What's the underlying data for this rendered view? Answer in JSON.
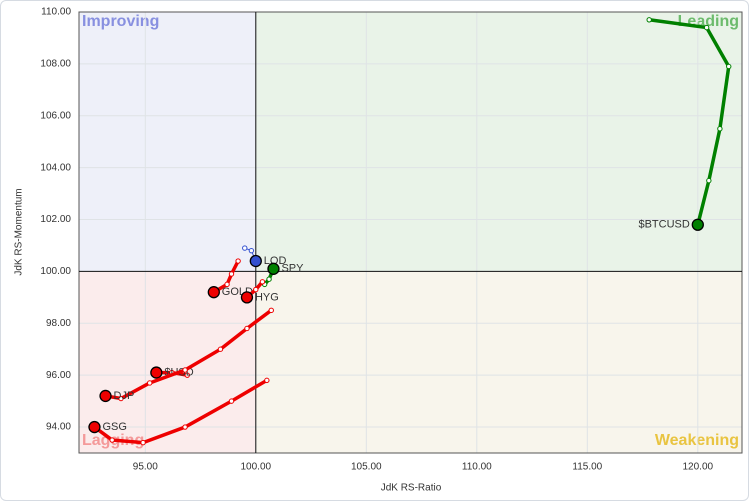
{
  "chart_data": {
    "type": "scatter",
    "x_label": "JdK RS-Ratio",
    "y_label": "JdK RS-Momentum",
    "xlim": [
      92,
      122
    ],
    "ylim": [
      93,
      110
    ],
    "xticks": [
      {
        "value": 95,
        "label": "95.00"
      },
      {
        "value": 100,
        "label": "100.00"
      },
      {
        "value": 105,
        "label": "105.00"
      },
      {
        "value": 110,
        "label": "110.00"
      },
      {
        "value": 115,
        "label": "115.00"
      },
      {
        "value": 120,
        "label": "120.00"
      }
    ],
    "yticks": [
      {
        "value": 94,
        "label": "94.00"
      },
      {
        "value": 96,
        "label": "96.00"
      },
      {
        "value": 98,
        "label": "98.00"
      },
      {
        "value": 100,
        "label": "100.00"
      },
      {
        "value": 102,
        "label": "102.00"
      },
      {
        "value": 104,
        "label": "104.00"
      },
      {
        "value": 106,
        "label": "106.00"
      },
      {
        "value": 108,
        "label": "108.00"
      },
      {
        "value": 110,
        "label": "110.00"
      }
    ],
    "grid": true,
    "center": [
      100,
      100
    ],
    "quadrants": [
      {
        "name": "Improving",
        "color": "#8890e0",
        "fill": "#eef0f9",
        "corner": "top-left"
      },
      {
        "name": "Leading",
        "color": "#6cbb6c",
        "fill": "#e9f3e8",
        "corner": "top-right"
      },
      {
        "name": "Weakening",
        "color": "#e9c441",
        "fill": "#f8f5ec",
        "corner": "bottom-right"
      },
      {
        "name": "Lagging",
        "color": "#f49a9a",
        "fill": "#fbecec",
        "corner": "bottom-left"
      }
    ],
    "series": [
      {
        "name": "$BTCUSD",
        "color": "#008000",
        "x": [
          117.8,
          120.4,
          121.4,
          121.0,
          120.5,
          120.0
        ],
        "values": [
          109.7,
          109.4,
          107.9,
          105.5,
          103.5,
          101.8
        ]
      },
      {
        "name": "LQD",
        "color": "#3350d0",
        "x": [
          99.5,
          99.8,
          100.0
        ],
        "values": [
          100.9,
          100.8,
          100.4
        ]
      },
      {
        "name": "SPY",
        "color": "#008000",
        "x": [
          100.4,
          100.6,
          100.8
        ],
        "values": [
          99.5,
          99.7,
          100.1
        ]
      },
      {
        "name": "GOLD",
        "color": "#ee0000",
        "x": [
          99.2,
          98.9,
          98.7,
          98.1
        ],
        "values": [
          100.4,
          99.9,
          99.5,
          99.2
        ]
      },
      {
        "name": "HYG",
        "color": "#ee0000",
        "x": [
          100.3,
          100.0,
          99.6
        ],
        "values": [
          99.6,
          99.3,
          99.0
        ]
      },
      {
        "name": "$USD",
        "color": "#ee0000",
        "x": [
          96.9,
          96.2,
          95.5
        ],
        "values": [
          96.0,
          96.1,
          96.1
        ]
      },
      {
        "name": "DJP",
        "color": "#ee0000",
        "x": [
          100.7,
          99.6,
          98.4,
          96.8,
          95.2,
          93.9,
          93.2
        ],
        "values": [
          98.5,
          97.8,
          97.0,
          96.2,
          95.7,
          95.1,
          95.2
        ]
      },
      {
        "name": "GSG",
        "color": "#ee0000",
        "x": [
          100.5,
          98.9,
          96.8,
          94.9,
          93.5,
          92.7
        ],
        "values": [
          95.8,
          95.0,
          94.0,
          93.4,
          93.5,
          94.0
        ]
      }
    ]
  }
}
